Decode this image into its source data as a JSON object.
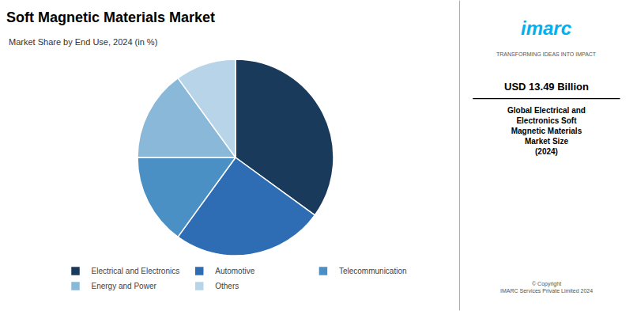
{
  "chart_data": {
    "type": "pie",
    "title": "Soft Magnetic Materials Market",
    "subtitle": "Market Share by End Use, 2024 (in %)",
    "categories": [
      "Electrical and Electronics",
      "Automotive",
      "Telecommunication",
      "Energy and Power",
      "Others"
    ],
    "values": [
      35,
      25,
      15,
      15,
      10
    ],
    "colors": [
      "#1a3a5c",
      "#2e6db4",
      "#4a90c4",
      "#8ab8d8",
      "#b8d4e8"
    ],
    "legend": "bottom",
    "annotations": [
      "imarc",
      "TRANSFORMING IDEAS INTO IMPACT",
      "USD 13.49 Billion",
      "Global Electrical and\nElectronics Soft\nMagnetic Materials\nMarket Size\n(2024)",
      "© Copyright\nIMARC Services Private Limited 2024"
    ]
  }
}
